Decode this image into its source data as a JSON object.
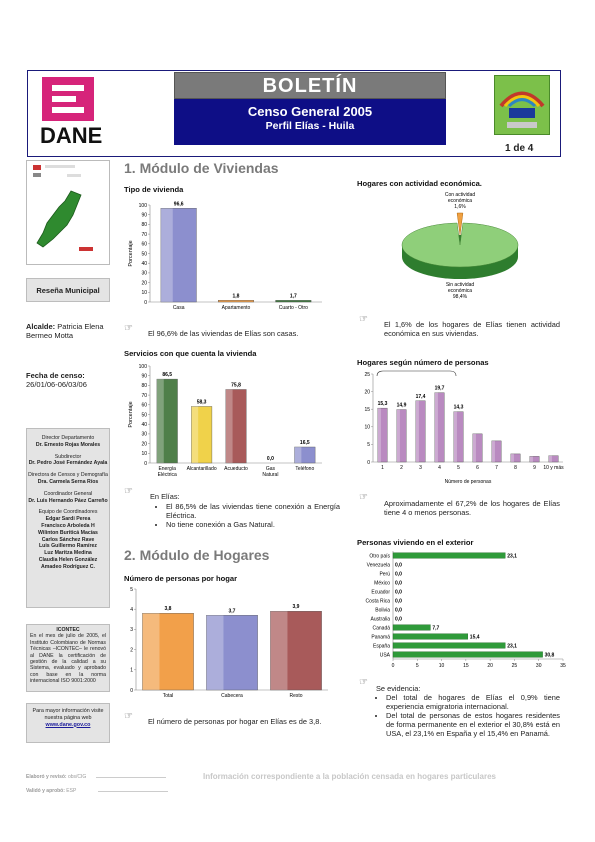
{
  "header": {
    "title": "BOLETÍN",
    "subtitle": "Censo General 2005",
    "place": "Perfil Elías - Huila",
    "page": "1 de 4",
    "logo_text": "DANE"
  },
  "sidebar": {
    "resena": "Reseña Municipal",
    "alcalde_label": "Alcalde:",
    "alcalde_value": "Patricia Elena Bermeo Motta",
    "fecha_label": "Fecha de censo:",
    "fecha_value": "26/01/06-06/03/06",
    "credits": [
      {
        "role": "Director Departamento",
        "name": "Dr. Ernesto Rojas Morales"
      },
      {
        "role": "Subdirector",
        "name": "Dr. Pedro José Fernández Ayala"
      },
      {
        "role": "Directora de Censos y Demografía",
        "name": "Dra. Carmela Serna Ríos"
      },
      {
        "role": "Coordinador General",
        "name": "Dr. Luis Hernando Páez Carreño"
      }
    ],
    "team_label": "Equipo de Coordinadores",
    "team": [
      "Edgar Sardi Perea",
      "Francisco Arboleda H",
      "Wilinton Buriticá Macías",
      "Carlos Sánchez Rave",
      "Luis Guillermo Ramírez",
      "Luz Maritza Medina",
      "Claudia Helen González",
      "Amadeo Rodríguez C."
    ],
    "icontec_title": "ICONTEC",
    "icontec_text": "En el mes de julio de 2005, el Instituto Colombiano de Normas Técnicas –ICONTEC– le renovó al DANE la certificación de gestión de la calidad a su Sistema, evaluado y aprobado con base en la norma internacional ISO 9001:2000",
    "web_text": "Para mayor información visite nuestra página web",
    "web_link": "www.dane.gov.co"
  },
  "sections": {
    "viviendas": "1. Módulo de Viviendas",
    "hogares": "2. Módulo de Hogares"
  },
  "charts_titles": {
    "tipo": "Tipo de vivienda",
    "servicios": "Servicios con que cuenta la vivienda",
    "actividad": "Hogares con actividad económica.",
    "personas": "Hogares según número de personas",
    "exterior": "Personas viviendo en el exterior",
    "numero": "Número de personas por hogar"
  },
  "notes": {
    "tipo": "El 96,6% de las viviendas de Elías son casas.",
    "actividad": "El 1,6% de los hogares de Elías tienen actividad económica en sus viviendas.",
    "servicios_intro": "En Elías:",
    "servicios_b1": "El 86,5% de las viviendas tiene conexión a Energía Eléctrica.",
    "servicios_b2": "No tiene conexión a Gas Natural.",
    "personas": "Aproximadamente el 67,2% de los hogares de Elías tiene 4 o menos personas.",
    "numero": "El número de personas por hogar en Elías es de 3,8.",
    "exterior_intro": "Se evidencia:",
    "exterior_b1": "Del total de hogares de Elías el 0,9% tiene experiencia emigratoria internacional.",
    "exterior_b2": "Del total de personas de estos hogares residentes de forma permanente en el exterior el 30,8% está en USA, el 23,1% en España y el 15,4% en Panamá."
  },
  "footer": {
    "elaboro": "Elaboró y revisó:",
    "elaboro_val": "obs/CIG",
    "valido": "Validó y aprobó:",
    "valido_val": "ESP",
    "banner": "Información correspondiente a la población censada en hogares particulares"
  },
  "colors": {
    "navy": "#0e0e86",
    "casa": "#8c8fce",
    "apto": "#f2a04a",
    "cuarto": "#3f7a3f",
    "energia": "#4f7f49",
    "alcant": "#f0d24a",
    "acued": "#a85a5a",
    "telef": "#8c8fce",
    "purple": "#b98ac0",
    "green": "#2f9a3a"
  },
  "chart_data": [
    {
      "id": "tipo",
      "type": "bar",
      "ylabel": "Porcentaje",
      "ylim": [
        0,
        100
      ],
      "yticks": [
        0,
        10,
        20,
        30,
        40,
        50,
        60,
        70,
        80,
        90,
        100
      ],
      "categories": [
        "Casa",
        "Apartamento",
        "Cuarto - Otro"
      ],
      "values": [
        96.6,
        1.8,
        1.7
      ],
      "labels": [
        "96,6",
        "1,8",
        "1,7"
      ]
    },
    {
      "id": "servicios",
      "type": "bar",
      "ylabel": "Porcentaje",
      "ylim": [
        0,
        100
      ],
      "yticks": [
        0,
        10,
        20,
        30,
        40,
        50,
        60,
        70,
        80,
        90,
        100
      ],
      "categories": [
        "Energía Eléctrica",
        "Alcantarillado",
        "Acueducto",
        "Gas Natural",
        "Teléfono"
      ],
      "values": [
        86.5,
        58.3,
        75.8,
        0.0,
        16.5
      ],
      "labels": [
        "86,5",
        "58,3",
        "75,8",
        "0,0",
        "16,5"
      ]
    },
    {
      "id": "actividad",
      "type": "pie",
      "categories": [
        "Con actividad económica",
        "Sin actividad económica"
      ],
      "values": [
        1.6,
        98.4
      ],
      "labels": [
        "1,6%",
        "98,4%"
      ]
    },
    {
      "id": "personas",
      "type": "bar",
      "xlabel": "Número de personas",
      "ylim": [
        0,
        25
      ],
      "yticks": [
        0,
        5,
        10,
        15,
        20,
        25
      ],
      "categories": [
        "1",
        "2",
        "3",
        "4",
        "5",
        "6",
        "7",
        "8",
        "9",
        "10 y más"
      ],
      "values": [
        15.3,
        14.9,
        17.4,
        19.7,
        14.3,
        8.0,
        6.0,
        2.3,
        1.6,
        1.8
      ],
      "labels": [
        "15,3",
        "14,9",
        "17,4",
        "19,7",
        "14,3",
        "",
        "",
        "",
        "",
        ""
      ]
    },
    {
      "id": "exterior",
      "type": "bar",
      "orientation": "horizontal",
      "xlim": [
        0,
        35
      ],
      "xticks": [
        0,
        5,
        10,
        15,
        20,
        25,
        30,
        35
      ],
      "categories": [
        "Otro país",
        "Venezuela",
        "Perú",
        "México",
        "Ecuador",
        "Costa Rica",
        "Bolivia",
        "Australia",
        "Canadá",
        "Panamá",
        "España",
        "USA"
      ],
      "values": [
        23.1,
        0.0,
        0.0,
        0.0,
        0.0,
        0.0,
        0.0,
        0.0,
        7.7,
        15.4,
        23.1,
        30.8
      ],
      "labels": [
        "23,1",
        "0,0",
        "0,0",
        "0,0",
        "0,0",
        "0,0",
        "0,0",
        "0,0",
        "7,7",
        "15,4",
        "23,1",
        "30,8"
      ]
    },
    {
      "id": "numero",
      "type": "bar",
      "ylim": [
        0,
        5
      ],
      "yticks": [
        0,
        1,
        2,
        3,
        4,
        5
      ],
      "categories": [
        "Total",
        "Cabecera",
        "Resto"
      ],
      "values": [
        3.8,
        3.7,
        3.9
      ],
      "labels": [
        "3,8",
        "3,7",
        "3,9"
      ]
    }
  ]
}
